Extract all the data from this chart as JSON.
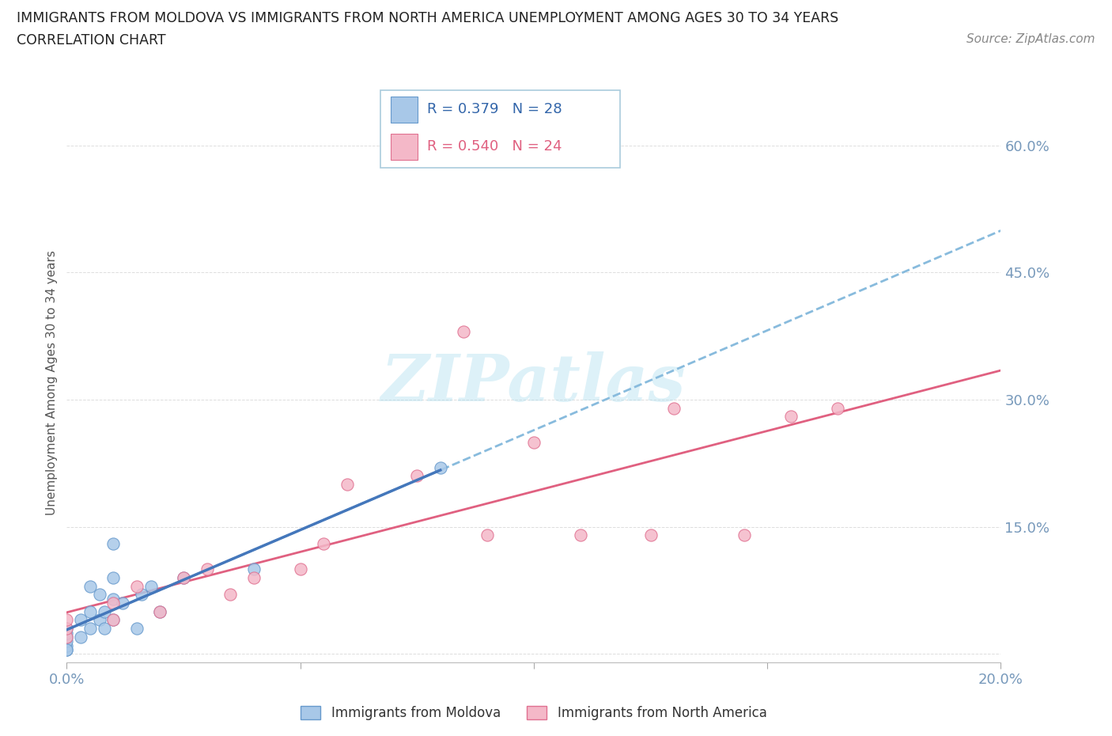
{
  "title_line1": "IMMIGRANTS FROM MOLDOVA VS IMMIGRANTS FROM NORTH AMERICA UNEMPLOYMENT AMONG AGES 30 TO 34 YEARS",
  "title_line2": "CORRELATION CHART",
  "source_text": "Source: ZipAtlas.com",
  "ylabel": "Unemployment Among Ages 30 to 34 years",
  "xlim": [
    0.0,
    0.2
  ],
  "ylim": [
    -0.01,
    0.65
  ],
  "xticks": [
    0.0,
    0.05,
    0.1,
    0.15,
    0.2
  ],
  "yticks": [
    0.0,
    0.15,
    0.3,
    0.45,
    0.6
  ],
  "moldova_color": "#A8C8E8",
  "moldova_edge_color": "#6699CC",
  "northam_color": "#F4B8C8",
  "northam_edge_color": "#E07090",
  "trendline_moldova_solid_color": "#4477BB",
  "trendline_moldova_dashed_color": "#88BBDD",
  "trendline_northam_color": "#E06080",
  "legend_r_moldova": "R = 0.379",
  "legend_n_moldova": "N = 28",
  "legend_r_northam": "R = 0.540",
  "legend_n_northam": "N = 24",
  "moldova_x": [
    0.0,
    0.0,
    0.0,
    0.0,
    0.0,
    0.0,
    0.0,
    0.003,
    0.003,
    0.005,
    0.005,
    0.005,
    0.007,
    0.007,
    0.008,
    0.008,
    0.01,
    0.01,
    0.01,
    0.01,
    0.012,
    0.015,
    0.016,
    0.018,
    0.02,
    0.025,
    0.04,
    0.08
  ],
  "moldova_y": [
    0.005,
    0.01,
    0.015,
    0.02,
    0.025,
    0.03,
    0.005,
    0.02,
    0.04,
    0.03,
    0.05,
    0.08,
    0.04,
    0.07,
    0.03,
    0.05,
    0.04,
    0.065,
    0.09,
    0.13,
    0.06,
    0.03,
    0.07,
    0.08,
    0.05,
    0.09,
    0.1,
    0.22
  ],
  "northam_x": [
    0.0,
    0.0,
    0.0,
    0.01,
    0.01,
    0.015,
    0.02,
    0.025,
    0.03,
    0.035,
    0.04,
    0.05,
    0.055,
    0.06,
    0.075,
    0.085,
    0.09,
    0.1,
    0.11,
    0.125,
    0.13,
    0.145,
    0.155,
    0.165
  ],
  "northam_y": [
    0.02,
    0.03,
    0.04,
    0.04,
    0.06,
    0.08,
    0.05,
    0.09,
    0.1,
    0.07,
    0.09,
    0.1,
    0.13,
    0.2,
    0.21,
    0.38,
    0.14,
    0.25,
    0.14,
    0.14,
    0.29,
    0.14,
    0.28,
    0.29
  ],
  "watermark_text": "ZIPatlas",
  "background_color": "#FFFFFF",
  "grid_color": "#DDDDDD",
  "tick_color": "#7799BB",
  "label_color": "#7799BB"
}
